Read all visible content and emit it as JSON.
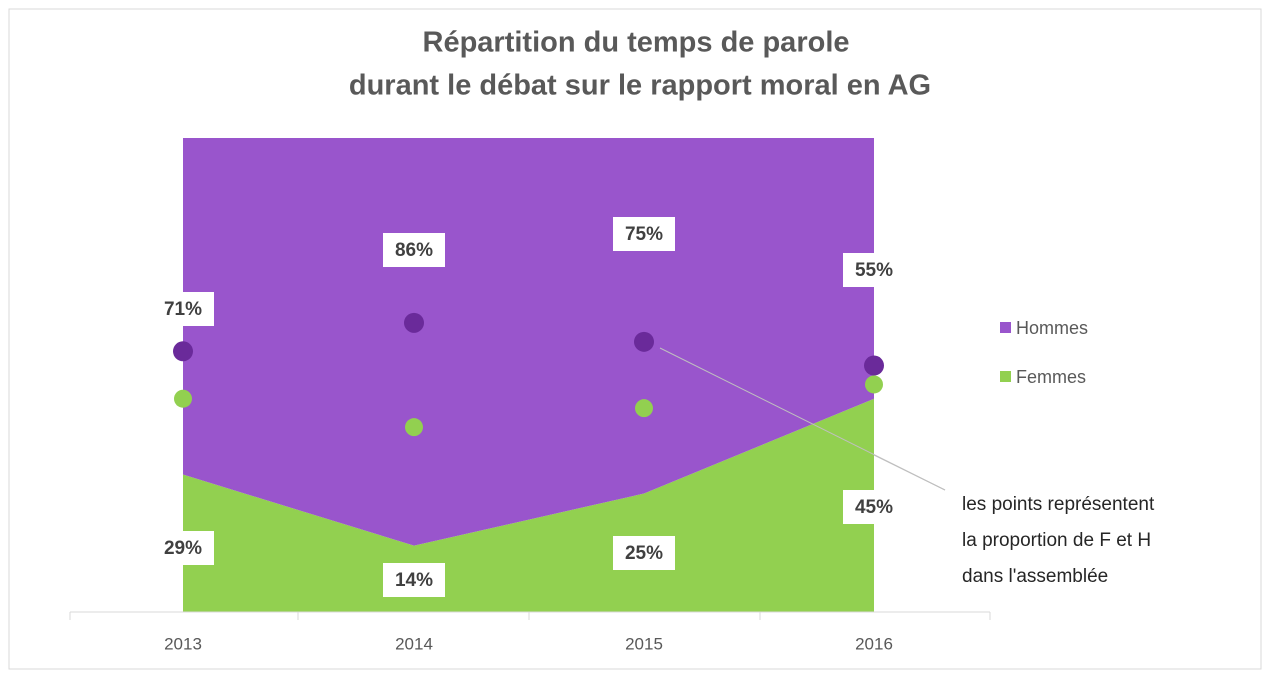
{
  "chart_data": {
    "type": "area",
    "stacked": true,
    "title": [
      "Répartition du temps de parole",
      "durant le débat sur le rapport moral en AG"
    ],
    "categories": [
      "2013",
      "2014",
      "2015",
      "2016"
    ],
    "ylim": [
      0,
      100
    ],
    "series": [
      {
        "name": "Femmes",
        "color": "#92d050",
        "dot_color": "#92d050",
        "values": [
          29,
          14,
          25,
          45
        ],
        "value_labels": [
          "29%",
          "14%",
          "25%",
          "45%"
        ],
        "dots": [
          45,
          39,
          43,
          48
        ]
      },
      {
        "name": "Hommes",
        "color": "#9955cc",
        "dot_color": "#6a2a9a",
        "values": [
          71,
          86,
          75,
          55
        ],
        "value_labels": [
          "71%",
          "86%",
          "75%",
          "55%"
        ],
        "dots": [
          55,
          61,
          57,
          52
        ]
      }
    ],
    "annotation": [
      "les points représentent",
      "la proportion de F et H",
      "dans l'assemblée"
    ],
    "legend": "right"
  }
}
